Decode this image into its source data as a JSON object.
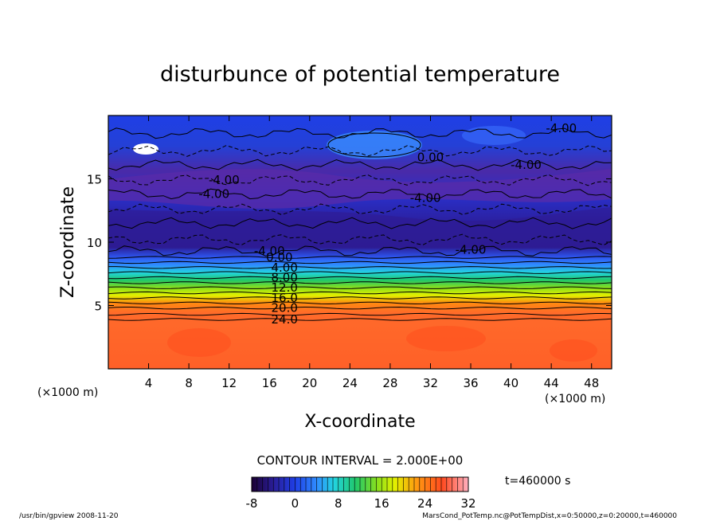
{
  "chart_data": {
    "type": "heatmap",
    "title": "disturbunce of potential temperature",
    "xlabel": "X-coordinate",
    "ylabel": "Z-coordinate",
    "x_unit_left": "(×1000 m)",
    "x_unit_right": "(×1000 m)",
    "xlim": [
      0,
      50
    ],
    "ylim": [
      0,
      20
    ],
    "x_ticks": [
      4,
      8,
      12,
      16,
      20,
      24,
      28,
      32,
      36,
      40,
      44,
      48
    ],
    "y_ticks": [
      5,
      10,
      15
    ],
    "contour_labels": [
      {
        "text": "-4.00",
        "x": 11.5,
        "z": 14.9
      },
      {
        "text": "-4.00",
        "x": 10.5,
        "z": 13.8
      },
      {
        "text": "-4.00",
        "x": 31.5,
        "z": 13.5
      },
      {
        "text": "0.00",
        "x": 32.0,
        "z": 16.7
      },
      {
        "text": "-4.00",
        "x": 41.5,
        "z": 16.1
      },
      {
        "text": "-4.00",
        "x": 45.0,
        "z": 19.0
      },
      {
        "text": "-4.00",
        "x": 36.0,
        "z": 9.4
      },
      {
        "text": "-4.00",
        "x": 16.0,
        "z": 9.3
      },
      {
        "text": "0.00",
        "x": 17.0,
        "z": 8.8
      },
      {
        "text": "4.00",
        "x": 17.5,
        "z": 8.0
      },
      {
        "text": "8.00",
        "x": 17.5,
        "z": 7.2
      },
      {
        "text": "12.0",
        "x": 17.5,
        "z": 6.4
      },
      {
        "text": "16.0",
        "x": 17.5,
        "z": 5.6
      },
      {
        "text": "20.0",
        "x": 17.5,
        "z": 4.8
      },
      {
        "text": "24.0",
        "x": 17.5,
        "z": 3.9
      }
    ],
    "contour_interval": "CONTOUR INTERVAL = 2.000E+00",
    "colorbar": {
      "ticks": [
        -8,
        0,
        8,
        16,
        24,
        32
      ],
      "range": [
        -8,
        32
      ]
    },
    "time_label": "t=460000 s",
    "footer_left": "/usr/bin/gpview   2008-11-20",
    "footer_right": "MarsCond_PotTemp.nc@PotTempDist,x=0:50000,z=0:20000,t=460000"
  }
}
